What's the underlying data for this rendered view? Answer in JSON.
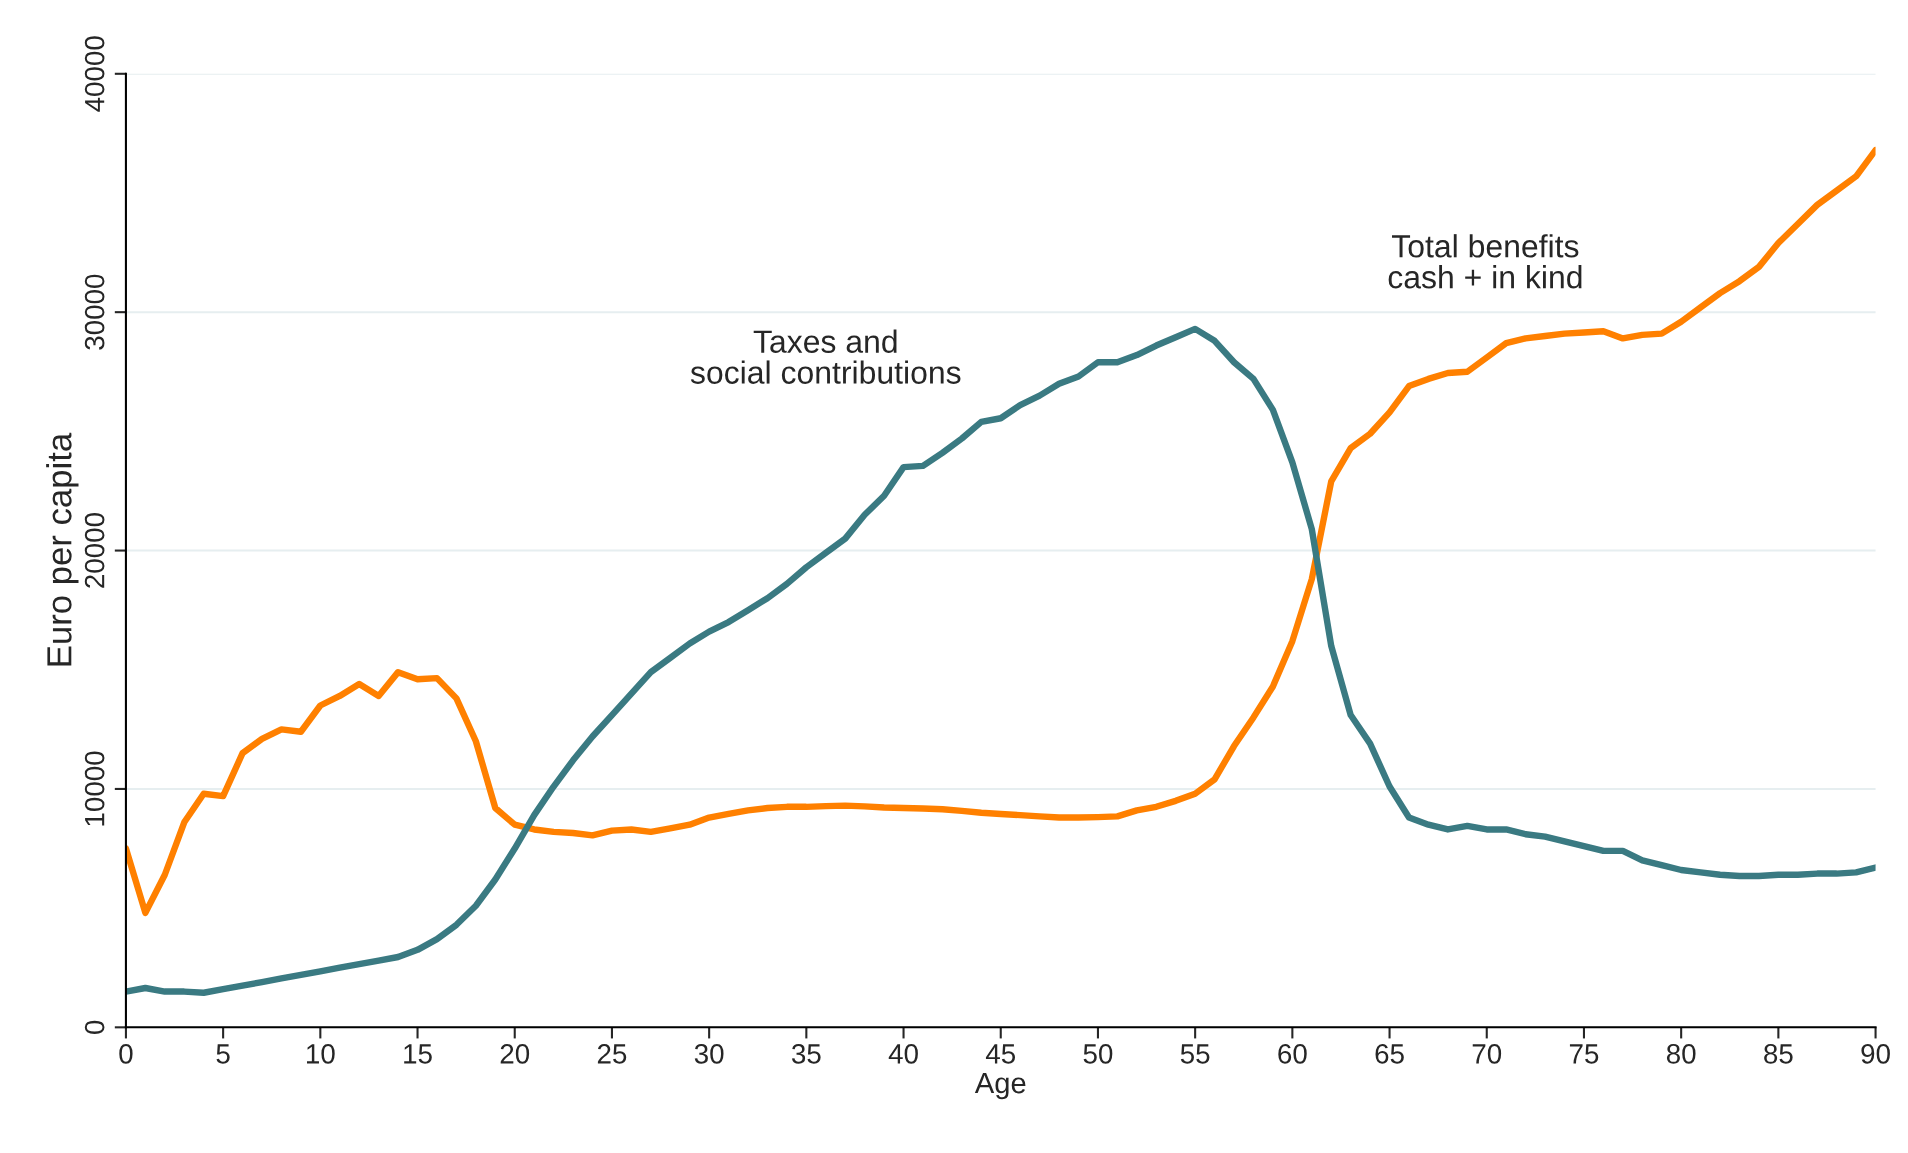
{
  "chart_data": {
    "type": "line",
    "xlabel": "Age",
    "ylabel": "Euro per capita",
    "x": [
      0,
      1,
      2,
      3,
      4,
      5,
      6,
      7,
      8,
      9,
      10,
      11,
      12,
      13,
      14,
      15,
      16,
      17,
      18,
      19,
      20,
      21,
      22,
      23,
      24,
      25,
      26,
      27,
      28,
      29,
      30,
      31,
      32,
      33,
      34,
      35,
      36,
      37,
      38,
      39,
      40,
      41,
      42,
      43,
      44,
      45,
      46,
      47,
      48,
      49,
      50,
      51,
      52,
      53,
      54,
      55,
      56,
      57,
      58,
      59,
      60,
      61,
      62,
      63,
      64,
      65,
      66,
      67,
      68,
      69,
      70,
      71,
      72,
      73,
      74,
      75,
      76,
      77,
      78,
      79,
      80,
      81,
      82,
      83,
      84,
      85,
      86,
      87,
      88,
      89,
      90
    ],
    "series": [
      {
        "name": "Total benefits\ncash + in kind",
        "color": "#ff8000",
        "values": [
          7500,
          4800,
          6400,
          8600,
          9800,
          9700,
          11500,
          12100,
          12500,
          12400,
          13500,
          13900,
          14400,
          13900,
          14900,
          14600,
          14650,
          13800,
          12000,
          9200,
          8500,
          8300,
          8200,
          8150,
          8050,
          8250,
          8300,
          8200,
          8350,
          8500,
          8800,
          8950,
          9100,
          9200,
          9250,
          9250,
          9280,
          9300,
          9270,
          9220,
          9200,
          9180,
          9150,
          9080,
          9000,
          8950,
          8900,
          8850,
          8800,
          8800,
          8820,
          8850,
          9100,
          9250,
          9500,
          9800,
          10400,
          11800,
          13000,
          14300,
          16200,
          18800,
          22900,
          24300,
          24900,
          25800,
          26900,
          27200,
          27450,
          27500,
          28100,
          28700,
          28900,
          29000,
          29100,
          29150,
          29200,
          28900,
          29050,
          29100,
          29600,
          30200,
          30800,
          31300,
          31900,
          32900,
          33700,
          34500,
          35100,
          35700,
          36800
        ]
      },
      {
        "name": "Taxes and\nsocial contributions",
        "color": "#3a7a82",
        "values": [
          1500,
          1650,
          1500,
          1500,
          1450,
          1600,
          1750,
          1900,
          2050,
          2200,
          2350,
          2500,
          2650,
          2800,
          2950,
          3250,
          3700,
          4300,
          5100,
          6200,
          7500,
          8900,
          10100,
          11200,
          12200,
          13100,
          14000,
          14900,
          15500,
          16100,
          16600,
          17000,
          17500,
          18000,
          18600,
          19300,
          19900,
          20500,
          21500,
          22300,
          23500,
          23550,
          24100,
          24700,
          25400,
          25550,
          26100,
          26500,
          27000,
          27300,
          27900,
          27900,
          28200,
          28600,
          28950,
          29300,
          28800,
          27900,
          27200,
          25900,
          23700,
          20900,
          16000,
          13100,
          11900,
          10100,
          8800,
          8500,
          8300,
          8450,
          8300,
          8300,
          8100,
          8000,
          7800,
          7600,
          7400,
          7400,
          7000,
          6800,
          6600,
          6500,
          6400,
          6350,
          6350,
          6400,
          6400,
          6450,
          6450,
          6500,
          6700
        ]
      }
    ],
    "xlim": [
      0,
      90
    ],
    "xticks": [
      0,
      5,
      10,
      15,
      20,
      25,
      30,
      35,
      40,
      45,
      50,
      55,
      60,
      65,
      70,
      75,
      80,
      85,
      90
    ],
    "ylim": [
      0,
      40000
    ],
    "yticks": [
      0,
      10000,
      20000,
      30000,
      40000
    ],
    "grid": "y",
    "legend": false,
    "line_style": "solid",
    "marker": "none"
  }
}
